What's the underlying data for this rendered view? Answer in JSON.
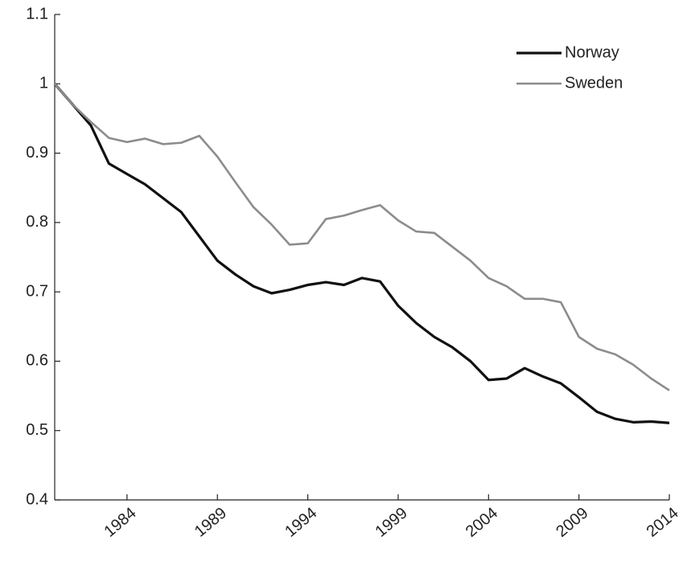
{
  "chart_data": {
    "type": "line",
    "x": [
      1980,
      1981,
      1982,
      1983,
      1984,
      1985,
      1986,
      1987,
      1988,
      1989,
      1990,
      1991,
      1992,
      1993,
      1994,
      1995,
      1996,
      1997,
      1998,
      1999,
      2000,
      2001,
      2002,
      2003,
      2004,
      2005,
      2006,
      2007,
      2008,
      2009,
      2010,
      2011,
      2012,
      2013,
      2014
    ],
    "series": [
      {
        "name": "Norway",
        "color": "#111111",
        "values": [
          1.0,
          0.97,
          0.94,
          0.885,
          0.87,
          0.855,
          0.835,
          0.815,
          0.78,
          0.745,
          0.725,
          0.708,
          0.698,
          0.703,
          0.71,
          0.714,
          0.71,
          0.72,
          0.715,
          0.68,
          0.655,
          0.635,
          0.62,
          0.6,
          0.573,
          0.575,
          0.59,
          0.578,
          0.568,
          0.548,
          0.527,
          0.517,
          0.512,
          0.513,
          0.511
        ]
      },
      {
        "name": "Sweden",
        "color": "#8c8c8c",
        "values": [
          1.0,
          0.97,
          0.945,
          0.922,
          0.916,
          0.921,
          0.913,
          0.915,
          0.925,
          0.895,
          0.858,
          0.822,
          0.797,
          0.768,
          0.77,
          0.805,
          0.81,
          0.818,
          0.825,
          0.803,
          0.787,
          0.785,
          0.765,
          0.745,
          0.72,
          0.708,
          0.69,
          0.69,
          0.685,
          0.635,
          0.618,
          0.61,
          0.595,
          0.575,
          0.558
        ]
      }
    ],
    "xlim": [
      1980,
      2014
    ],
    "xticks": [
      1984,
      1989,
      1994,
      1999,
      2004,
      2009,
      2014
    ],
    "ylim": [
      0.4,
      1.1
    ],
    "yticks": [
      0.4,
      0.5,
      0.6,
      0.7,
      0.8,
      0.9,
      1,
      1.1
    ],
    "grid": false,
    "legend": "upper right"
  }
}
